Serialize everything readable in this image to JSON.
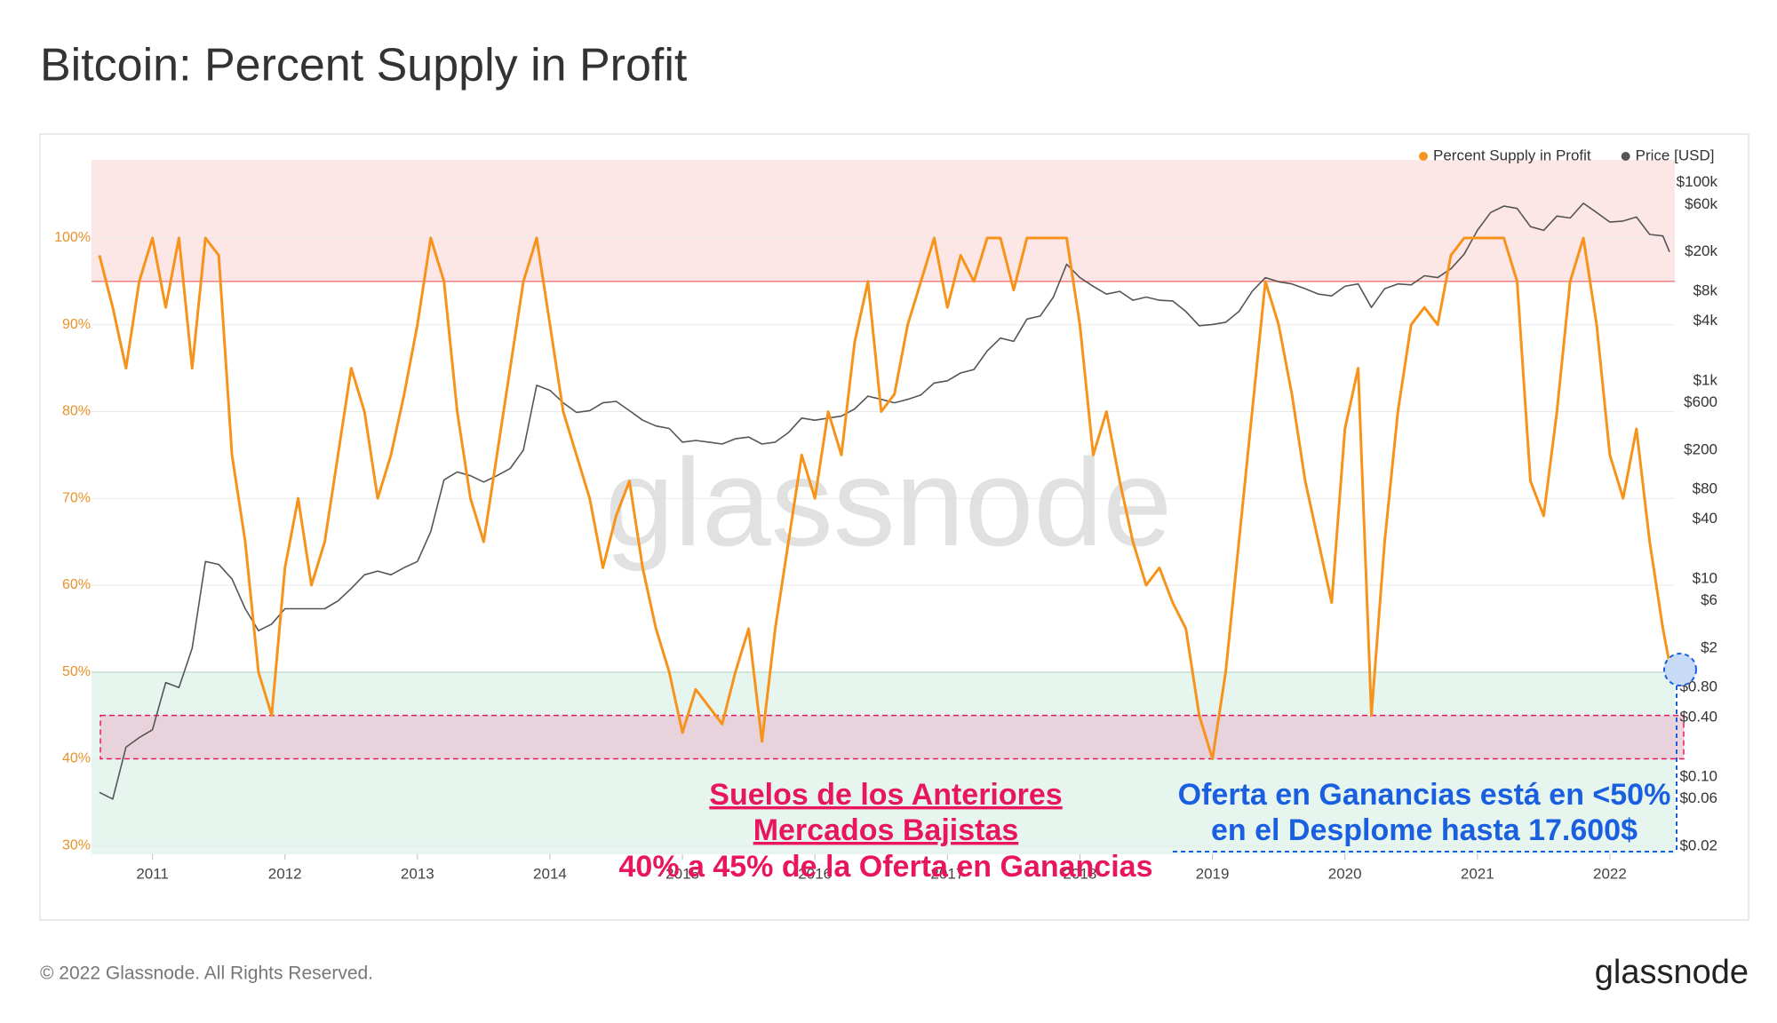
{
  "chart_data": {
    "type": "line",
    "title": "Bitcoin: Percent Supply in Profit",
    "watermark": "glassnode",
    "x": [
      2010.6,
      2010.7,
      2010.8,
      2010.9,
      2011.0,
      2011.1,
      2011.2,
      2011.3,
      2011.4,
      2011.5,
      2011.6,
      2011.7,
      2011.8,
      2011.9,
      2012.0,
      2012.1,
      2012.2,
      2012.3,
      2012.4,
      2012.5,
      2012.6,
      2012.7,
      2012.8,
      2012.9,
      2013.0,
      2013.1,
      2013.2,
      2013.3,
      2013.4,
      2013.5,
      2013.6,
      2013.7,
      2013.8,
      2013.9,
      2014.0,
      2014.1,
      2014.2,
      2014.3,
      2014.4,
      2014.5,
      2014.6,
      2014.7,
      2014.8,
      2014.9,
      2015.0,
      2015.1,
      2015.2,
      2015.3,
      2015.4,
      2015.5,
      2015.6,
      2015.7,
      2015.8,
      2015.9,
      2016.0,
      2016.1,
      2016.2,
      2016.3,
      2016.4,
      2016.5,
      2016.6,
      2016.7,
      2016.8,
      2016.9,
      2017.0,
      2017.1,
      2017.2,
      2017.3,
      2017.4,
      2017.5,
      2017.6,
      2017.7,
      2017.8,
      2017.9,
      2018.0,
      2018.1,
      2018.2,
      2018.3,
      2018.4,
      2018.5,
      2018.6,
      2018.7,
      2018.8,
      2018.9,
      2019.0,
      2019.1,
      2019.2,
      2019.3,
      2019.4,
      2019.5,
      2019.6,
      2019.7,
      2019.8,
      2019.9,
      2020.0,
      2020.1,
      2020.2,
      2020.3,
      2020.4,
      2020.5,
      2020.6,
      2020.7,
      2020.8,
      2020.9,
      2021.0,
      2021.1,
      2021.2,
      2021.3,
      2021.4,
      2021.5,
      2021.6,
      2021.7,
      2021.8,
      2021.9,
      2022.0,
      2022.1,
      2022.2,
      2022.3,
      2022.4,
      2022.45
    ],
    "series": [
      {
        "name": "Percent Supply in Profit",
        "color": "#f7931a",
        "axis": "y",
        "values": [
          98,
          92,
          85,
          95,
          100,
          92,
          100,
          85,
          100,
          98,
          75,
          65,
          50,
          45,
          62,
          70,
          60,
          65,
          75,
          85,
          80,
          70,
          75,
          82,
          90,
          100,
          95,
          80,
          70,
          65,
          75,
          85,
          95,
          100,
          90,
          80,
          75,
          70,
          62,
          68,
          72,
          62,
          55,
          50,
          43,
          48,
          46,
          44,
          50,
          55,
          42,
          55,
          65,
          75,
          70,
          80,
          75,
          88,
          95,
          80,
          82,
          90,
          95,
          100,
          92,
          98,
          95,
          100,
          100,
          94,
          100,
          100,
          100,
          100,
          90,
          75,
          80,
          72,
          65,
          60,
          62,
          58,
          55,
          45,
          40,
          50,
          65,
          80,
          95,
          90,
          82,
          72,
          65,
          58,
          78,
          85,
          45,
          65,
          80,
          90,
          92,
          90,
          98,
          100,
          100,
          100,
          100,
          95,
          72,
          68,
          80,
          95,
          100,
          90,
          75,
          70,
          78,
          65,
          55,
          51
        ]
      },
      {
        "name": "Price [USD]",
        "color": "#555555",
        "axis": "y2",
        "values": [
          0.07,
          0.06,
          0.2,
          0.25,
          0.3,
          0.9,
          0.8,
          2,
          15,
          14,
          10,
          5,
          3,
          3.5,
          5,
          5,
          5,
          5,
          6,
          8,
          11,
          12,
          11,
          13,
          15,
          30,
          100,
          120,
          110,
          95,
          110,
          130,
          200,
          900,
          800,
          600,
          480,
          500,
          600,
          620,
          500,
          400,
          350,
          330,
          240,
          250,
          240,
          230,
          260,
          270,
          230,
          240,
          300,
          420,
          400,
          420,
          440,
          520,
          700,
          650,
          600,
          650,
          720,
          950,
          1000,
          1200,
          1300,
          2000,
          2700,
          2500,
          4200,
          4500,
          7000,
          15000,
          11000,
          9000,
          7500,
          8000,
          6500,
          7000,
          6500,
          6400,
          5000,
          3600,
          3700,
          3900,
          5000,
          8000,
          11000,
          10000,
          9500,
          8500,
          7500,
          7200,
          9000,
          9500,
          5500,
          8500,
          9500,
          9300,
          11500,
          11000,
          13500,
          19000,
          33000,
          50000,
          58000,
          55000,
          36000,
          33000,
          46000,
          44000,
          62000,
          50000,
          40000,
          41000,
          45000,
          30000,
          29000,
          20000
        ]
      }
    ],
    "xlim": [
      2010.54,
      2022.49
    ],
    "xticks": [
      2011,
      2012,
      2013,
      2014,
      2015,
      2016,
      2017,
      2018,
      2019,
      2020,
      2021,
      2022
    ],
    "ylim": [
      29,
      109
    ],
    "yticks": [
      {
        "value": 30,
        "label": "30%"
      },
      {
        "value": 40,
        "label": "40%"
      },
      {
        "value": 50,
        "label": "50%"
      },
      {
        "value": 60,
        "label": "60%"
      },
      {
        "value": 70,
        "label": "70%"
      },
      {
        "value": 80,
        "label": "80%"
      },
      {
        "value": 90,
        "label": "90%"
      },
      {
        "value": 100,
        "label": "100%"
      }
    ],
    "y2lim": [
      0.0166,
      170000
    ],
    "y2log": true,
    "y2ticks": [
      {
        "value": 100000,
        "label": "$100k"
      },
      {
        "value": 60000,
        "label": "$60k"
      },
      {
        "value": 20000,
        "label": "$20k"
      },
      {
        "value": 8000,
        "label": "$8k"
      },
      {
        "value": 4000,
        "label": "$4k"
      },
      {
        "value": 1000,
        "label": "$1k"
      },
      {
        "value": 600,
        "label": "$600"
      },
      {
        "value": 200,
        "label": "$200"
      },
      {
        "value": 80,
        "label": "$80"
      },
      {
        "value": 40,
        "label": "$40"
      },
      {
        "value": 10,
        "label": "$10"
      },
      {
        "value": 6,
        "label": "$6"
      },
      {
        "value": 2,
        "label": "$2"
      },
      {
        "value": 0.8,
        "label": "$0.80"
      },
      {
        "value": 0.4,
        "label": "$0.40"
      },
      {
        "value": 0.1,
        "label": "$0.10"
      },
      {
        "value": 0.06,
        "label": "$0.06"
      },
      {
        "value": 0.02,
        "label": "$0.02"
      }
    ],
    "grid": true,
    "legend": "top-right",
    "bands": [
      {
        "from": 95,
        "to": 109,
        "color": "#fde6e6",
        "edge": "#f08080"
      },
      {
        "from": 29,
        "to": 50,
        "color": "#e6f6ef",
        "edge": "#7fcfa6"
      }
    ],
    "highlight": {
      "from": 40,
      "to": 45,
      "color": "#e8c6d6",
      "edge": "#e8175d"
    },
    "annotations": [
      {
        "lines": [
          "Suelos de los Anteriores",
          "Mercados Bajistas",
          "40% a 45% de la Oferta en Ganancias"
        ],
        "color": "#e8175d"
      },
      {
        "lines": [
          "Oferta en Ganancias está en <50%",
          "en el Desplome hasta 17.600$"
        ],
        "color": "#1a5fe0"
      }
    ]
  },
  "footer": {
    "copyright": "© 2022 Glassnode. All Rights Reserved.",
    "logo": "glassnode"
  }
}
